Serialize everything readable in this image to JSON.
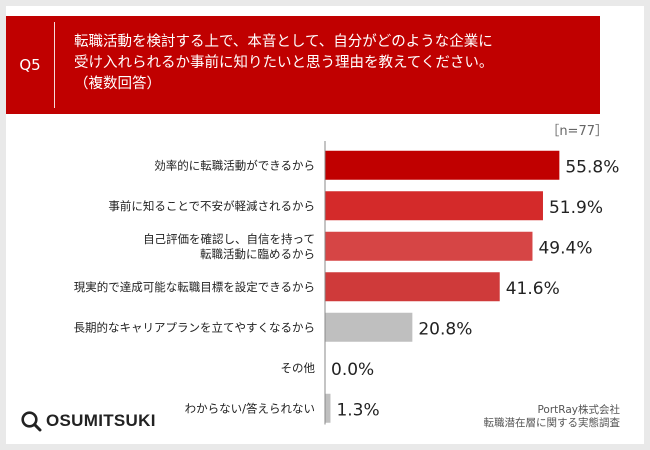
{
  "question": {
    "badge": "Q5",
    "lines": [
      "転職活動を検討する上で、本音として、自分がどのような企業に",
      "受け入れられるか事前に知りたいと思う理由を教えてください。",
      "（複数回答）"
    ]
  },
  "sample_size": "［n=77］",
  "chart_data": {
    "type": "bar",
    "orientation": "horizontal",
    "categories": [
      [
        "効率的に転職活動ができるから"
      ],
      [
        "事前に知ることで不安が軽減されるから"
      ],
      [
        "自己評価を確認し、自信を持って",
        "転職活動に臨めるから"
      ],
      [
        "現実的で達成可能な転職目標を設定できるから"
      ],
      [
        "長期的なキャリアプランを立てやすくなるから"
      ],
      [
        "その他"
      ],
      [
        "わからない/答えられない"
      ]
    ],
    "values": [
      55.8,
      51.9,
      49.4,
      41.6,
      20.8,
      0.0,
      1.3
    ],
    "value_labels": [
      "55.8%",
      "51.9%",
      "49.4%",
      "41.6%",
      "20.8%",
      "0.0%",
      "1.3%"
    ],
    "bar_colors": [
      "#c00000",
      "#d42a2a",
      "#d64545",
      "#cf3a3a",
      "#bfbfbf",
      "#bfbfbf",
      "#bfbfbf"
    ],
    "xlim": [
      0,
      100
    ],
    "grid": false
  },
  "colors": {
    "accent": "#c00000",
    "gray": "#bfbfbf"
  },
  "logo": {
    "icon": "search-magnifier-icon",
    "text": "OSUMITSUKI"
  },
  "source": {
    "line1": "PortRay株式会社",
    "line2": "転職潜在層に関する実態調査"
  }
}
